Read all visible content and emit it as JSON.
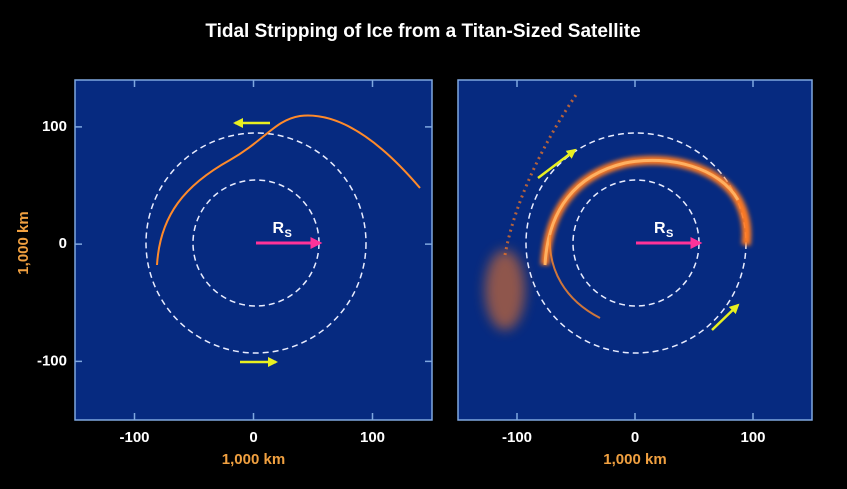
{
  "chart_data": [
    {
      "type": "orbit-plot",
      "title": "Tidal Stripping of Ice from a Titan-Sized Satellite",
      "xlabel": "1,000 km",
      "ylabel": "1,000 km",
      "annotation": "R",
      "annotation_subscript": "S",
      "xlim": [
        -150,
        150
      ],
      "xticks": [
        -100,
        0,
        100
      ],
      "ylim": [
        -150,
        140
      ],
      "yticks": [
        -100,
        0,
        100
      ]
    },
    {
      "type": "orbit-plot",
      "xlabel": "1,000 km",
      "annotation": "R",
      "annotation_subscript": "S",
      "xlim": [
        -150,
        150
      ],
      "xticks": [
        -100,
        0,
        100
      ],
      "ylim": [
        -150,
        140
      ]
    }
  ]
}
